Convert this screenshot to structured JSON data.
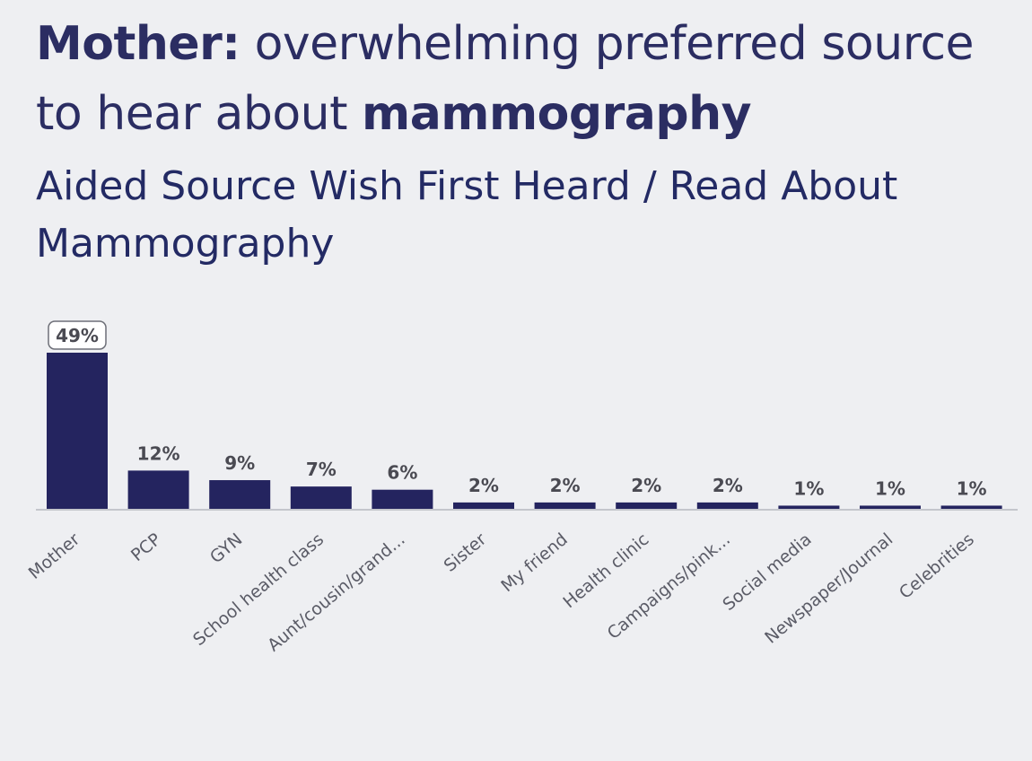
{
  "header": {
    "title_bold": "Mother:",
    "title_rest_1": " overwhelming preferred source to hear about ",
    "title_bold_2": "mammography",
    "subtitle": "Aided Source Wish First Heard / Read About Mammography"
  },
  "colors": {
    "bar": "#24245f",
    "axis": "#c4c6cc",
    "callout_border": "#6d6f78"
  },
  "chart_data": {
    "type": "bar",
    "title": "Aided Source Wish First Heard / Read About Mammography",
    "xlabel": "",
    "ylabel": "",
    "ylim": [
      0,
      50
    ],
    "grid": false,
    "categories": [
      "Mother",
      "PCP",
      "GYN",
      "School health class",
      "Aunt/cousin/grand...",
      "Sister",
      "My friend",
      "Health clinic",
      "Campaigns/pink...",
      "Social media",
      "Newspaper/Journal",
      "Celebrities"
    ],
    "values": [
      49,
      12,
      9,
      7,
      6,
      2,
      2,
      2,
      2,
      1,
      1,
      1
    ],
    "value_labels": [
      "49%",
      "12%",
      "9%",
      "7%",
      "6%",
      "2%",
      "2%",
      "2%",
      "2%",
      "1%",
      "1%",
      "1%"
    ],
    "highlighted_index": 0
  }
}
